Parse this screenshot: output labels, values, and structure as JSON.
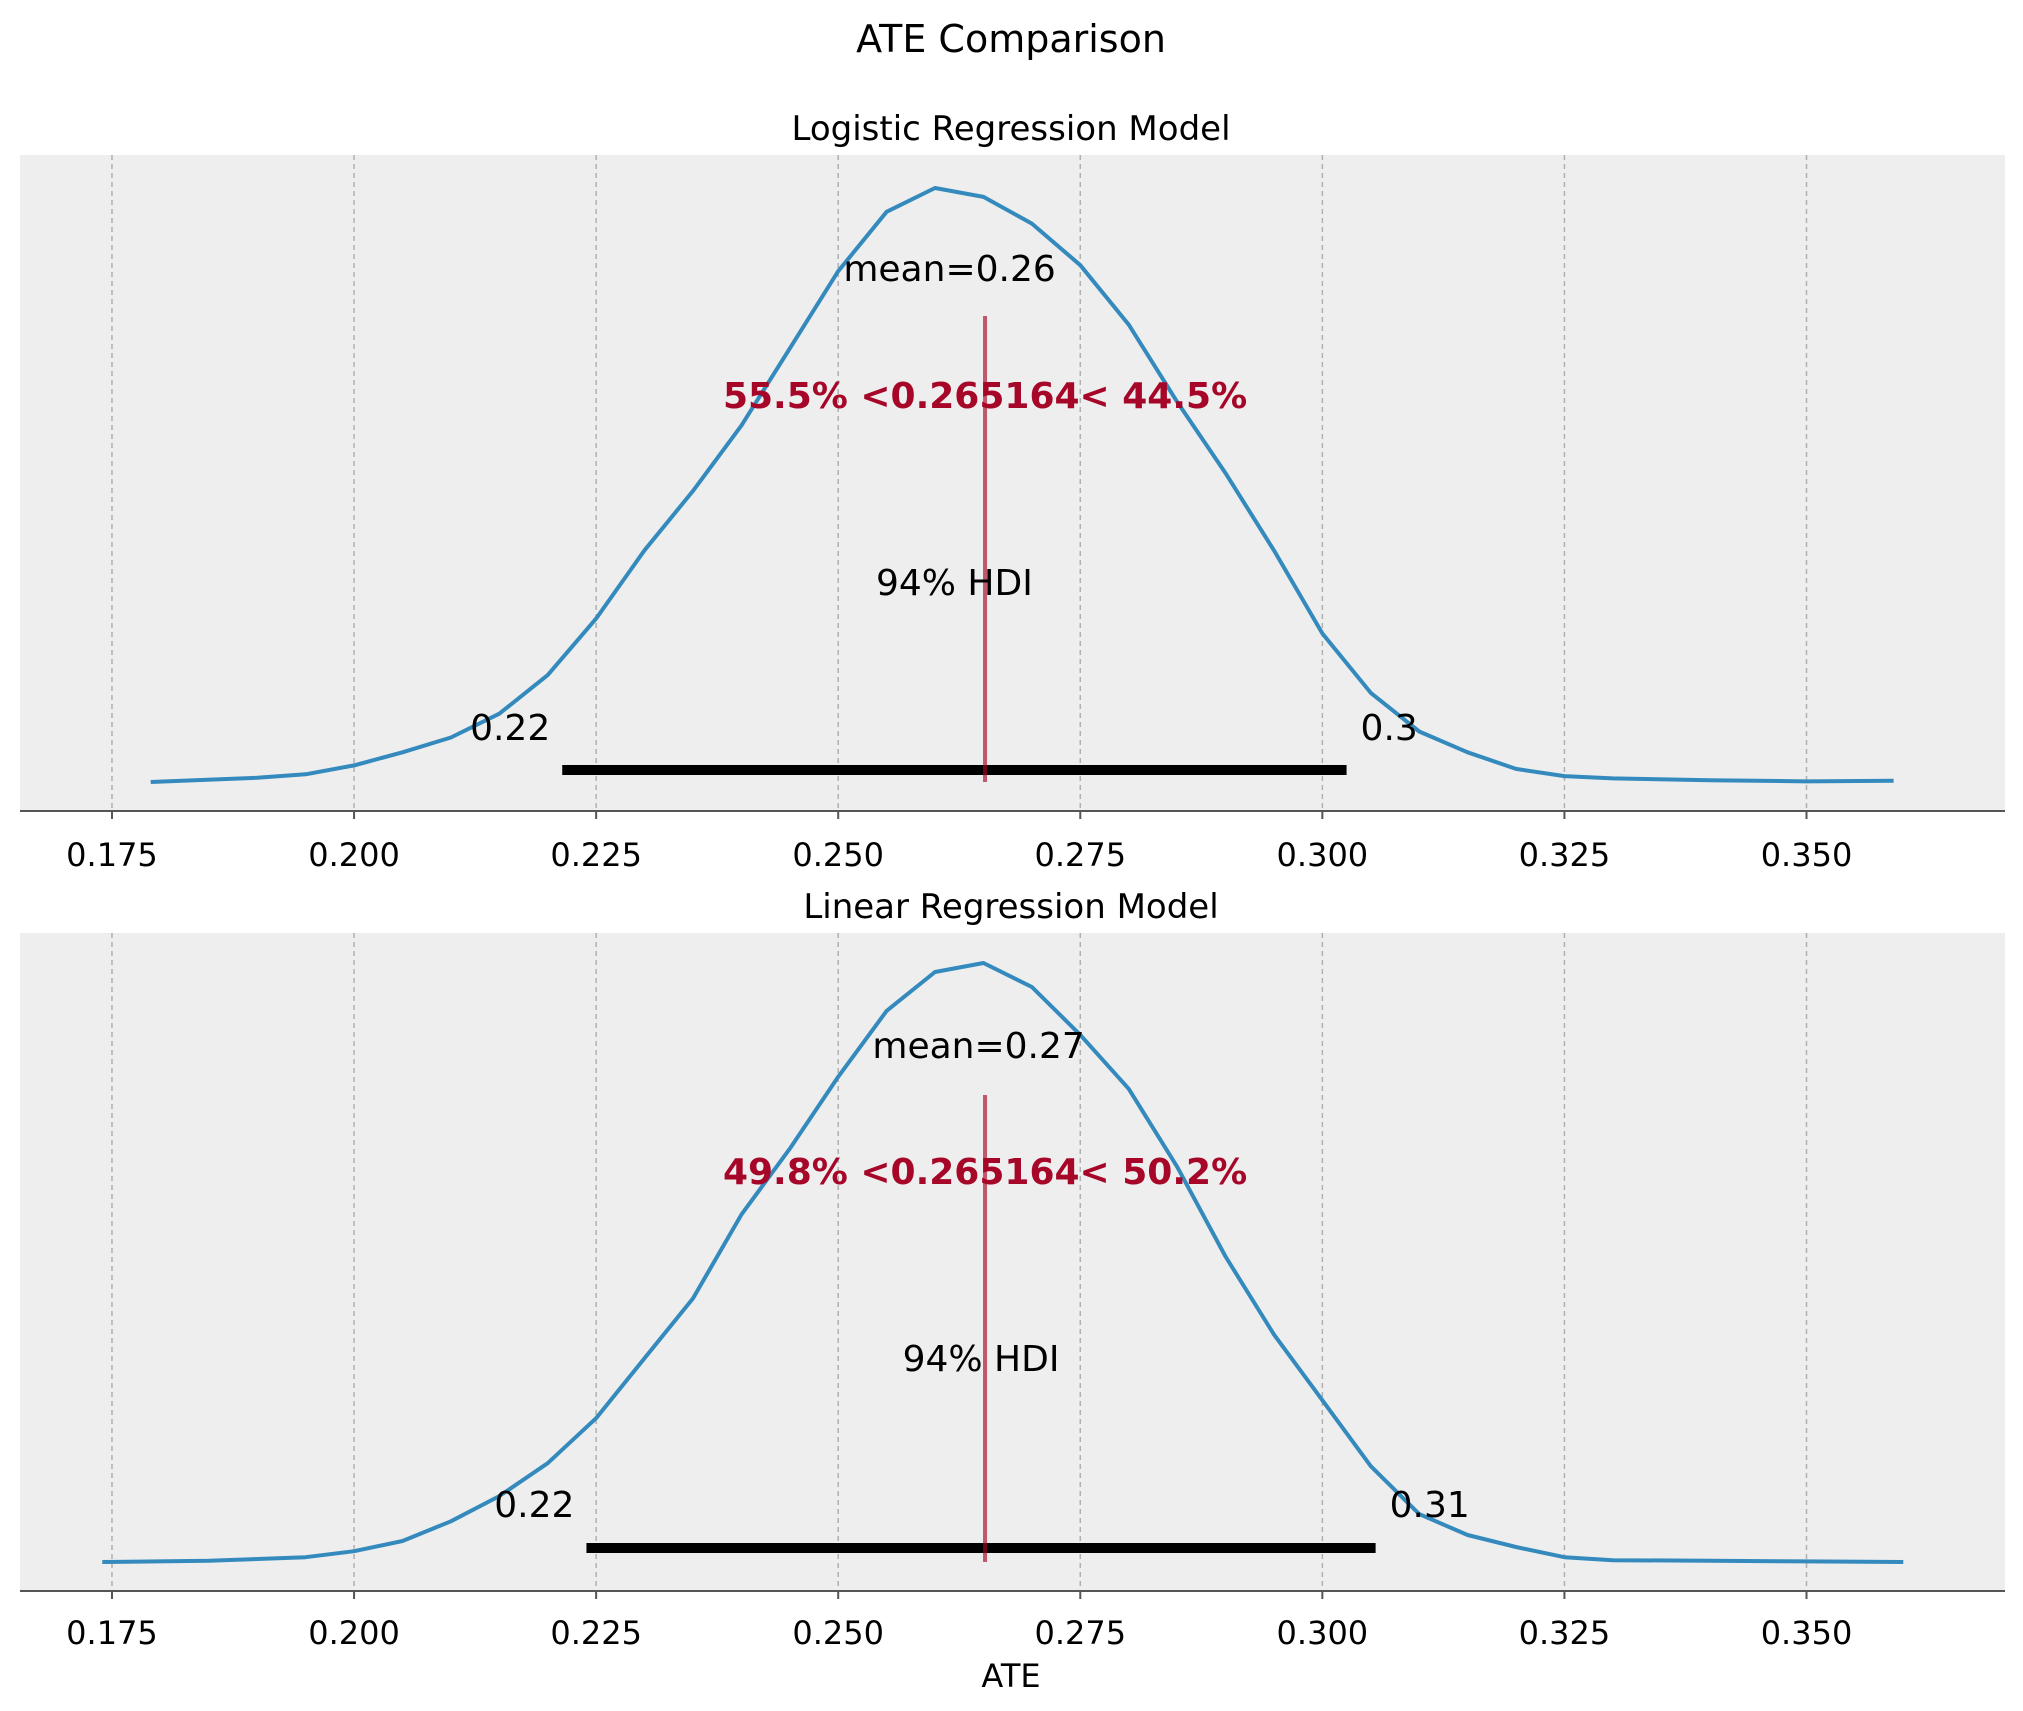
{
  "figure": {
    "suptitle": "ATE Comparison"
  },
  "chart_data": [
    {
      "type": "area",
      "title": "Logistic Regression Model",
      "xlabel": "",
      "xlim": [
        0.1655,
        0.3705
      ],
      "xticks": [
        "0.175",
        "0.200",
        "0.225",
        "0.250",
        "0.275",
        "0.300",
        "0.325",
        "0.350"
      ],
      "xtick_values": [
        0.175,
        0.2,
        0.225,
        0.25,
        0.275,
        0.3,
        0.325,
        0.35
      ],
      "grid": "x",
      "series": [
        {
          "x": [
            0.179,
            0.19,
            0.195,
            0.2,
            0.205,
            0.21,
            0.215,
            0.22,
            0.225,
            0.23,
            0.235,
            0.24,
            0.245,
            0.25,
            0.255,
            0.26,
            0.265,
            0.27,
            0.275,
            0.28,
            0.285,
            0.29,
            0.295,
            0.3,
            0.305,
            0.31,
            0.315,
            0.32,
            0.325,
            0.33,
            0.34,
            0.35,
            0.359
          ],
          "y": [
            0.0,
            0.007,
            0.013,
            0.028,
            0.05,
            0.075,
            0.115,
            0.18,
            0.275,
            0.39,
            0.49,
            0.6,
            0.73,
            0.86,
            0.96,
            1.0,
            0.985,
            0.94,
            0.87,
            0.77,
            0.64,
            0.52,
            0.39,
            0.25,
            0.15,
            0.085,
            0.05,
            0.022,
            0.01,
            0.006,
            0.003,
            0.001,
            0.002
          ]
        }
      ],
      "mean_label": "mean=0.26",
      "mean": 0.2615,
      "reference": 0.265164,
      "reference_label": "55.5% <0.265164< 44.5%",
      "hdi_label": "94% HDI",
      "hdi": [
        0.2215,
        0.3025
      ],
      "hdi_low_label": "0.22",
      "hdi_high_label": "0.3"
    },
    {
      "type": "area",
      "title": "Linear Regression Model",
      "xlabel": "ATE",
      "xlim": [
        0.1655,
        0.3705
      ],
      "xticks": [
        "0.175",
        "0.200",
        "0.225",
        "0.250",
        "0.275",
        "0.300",
        "0.325",
        "0.350"
      ],
      "xtick_values": [
        0.175,
        0.2,
        0.225,
        0.25,
        0.275,
        0.3,
        0.325,
        0.35
      ],
      "grid": "x",
      "series": [
        {
          "x": [
            0.174,
            0.185,
            0.195,
            0.2,
            0.205,
            0.21,
            0.215,
            0.22,
            0.225,
            0.23,
            0.235,
            0.24,
            0.245,
            0.25,
            0.255,
            0.26,
            0.265,
            0.27,
            0.275,
            0.28,
            0.285,
            0.29,
            0.295,
            0.3,
            0.305,
            0.31,
            0.315,
            0.32,
            0.325,
            0.33,
            0.34,
            0.35,
            0.36
          ],
          "y": [
            0.0,
            0.002,
            0.008,
            0.018,
            0.035,
            0.068,
            0.11,
            0.165,
            0.24,
            0.34,
            0.44,
            0.58,
            0.69,
            0.81,
            0.92,
            0.985,
            1.0,
            0.96,
            0.88,
            0.79,
            0.66,
            0.51,
            0.38,
            0.27,
            0.16,
            0.08,
            0.045,
            0.025,
            0.008,
            0.003,
            0.002,
            0.001,
            0.0
          ]
        }
      ],
      "mean_label": "mean=0.27",
      "mean": 0.2645,
      "reference": 0.265164,
      "reference_label": "49.8% <0.265164< 50.2%",
      "hdi_label": "94% HDI",
      "hdi": [
        0.224,
        0.3055
      ],
      "hdi_low_label": "0.22",
      "hdi_high_label": "0.31"
    }
  ],
  "colors": {
    "curve": "#348abd",
    "reference": "#a60628",
    "hdi": "#000000",
    "axes_bg": "#eeeeee",
    "grid": "#b0b0b0",
    "text": "#000000"
  }
}
